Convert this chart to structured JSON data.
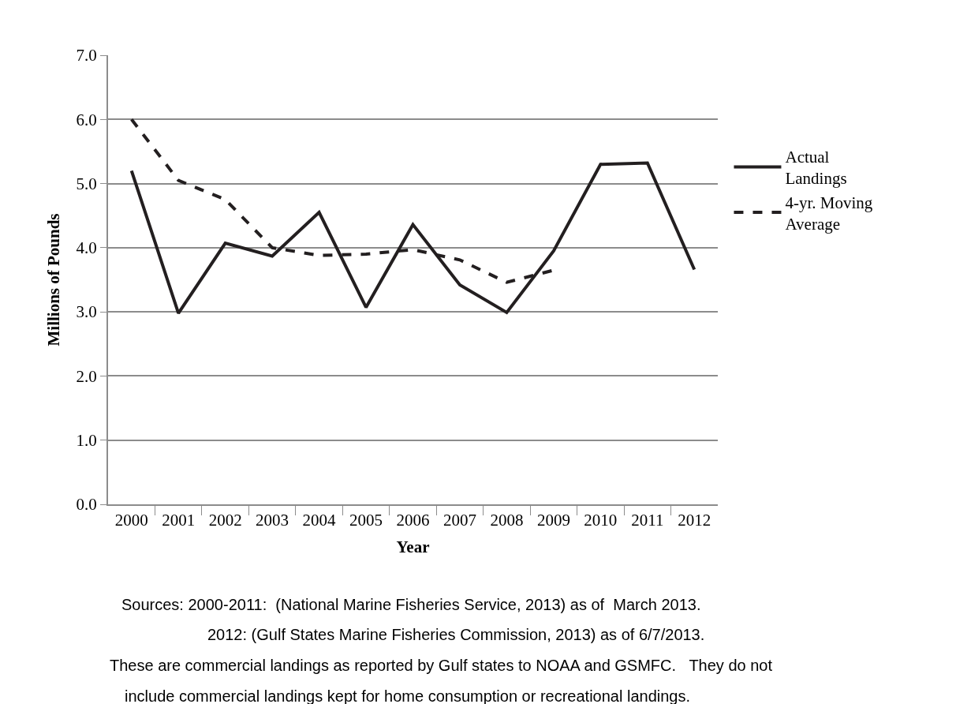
{
  "chart_data": {
    "type": "line",
    "xlabel": "Year",
    "ylabel": "Millions of Pounds",
    "categories": [
      "2000",
      "2001",
      "2002",
      "2003",
      "2004",
      "2005",
      "2006",
      "2007",
      "2008",
      "2009",
      "2010",
      "2011",
      "2012"
    ],
    "series": [
      {
        "name": "Actual Landings",
        "color": "#231f20",
        "line_style": "solid",
        "values": [
          5.2,
          2.98,
          4.07,
          3.87,
          4.55,
          3.07,
          4.36,
          3.42,
          2.99,
          3.95,
          5.3,
          5.32,
          3.66
        ]
      },
      {
        "name": "4-yr. Moving Average",
        "color": "#231f20",
        "line_style": "dashed",
        "values": [
          6.0,
          5.05,
          4.75,
          4.0,
          3.88,
          3.9,
          3.97,
          3.81,
          3.46,
          3.65,
          null,
          null,
          null
        ]
      }
    ],
    "ylim": [
      0,
      7
    ],
    "yticks": [
      {
        "value": 0,
        "label": "0.0"
      },
      {
        "value": 1,
        "label": "1.0"
      },
      {
        "value": 2,
        "label": "2.0"
      },
      {
        "value": 3,
        "label": "3.0"
      },
      {
        "value": 4,
        "label": "4.0"
      },
      {
        "value": 5,
        "label": "5.0"
      },
      {
        "value": 6,
        "label": "6.0"
      },
      {
        "value": 7,
        "label": "7.0"
      }
    ],
    "grid": "y",
    "legend": "right",
    "marker": "none",
    "annotations": [
      "Sources: 2000-2011:  (National Marine Fisheries Service, 2013) as of  March 2013.",
      "2012: (Gulf States Marine Fisheries Commission, 2013) as of 6/7/2013.",
      "These are commercial landings as reported by Gulf states to NOAA and GSMFC.   They do not",
      "include commercial landings kept for home consumption or recreational landings."
    ]
  }
}
